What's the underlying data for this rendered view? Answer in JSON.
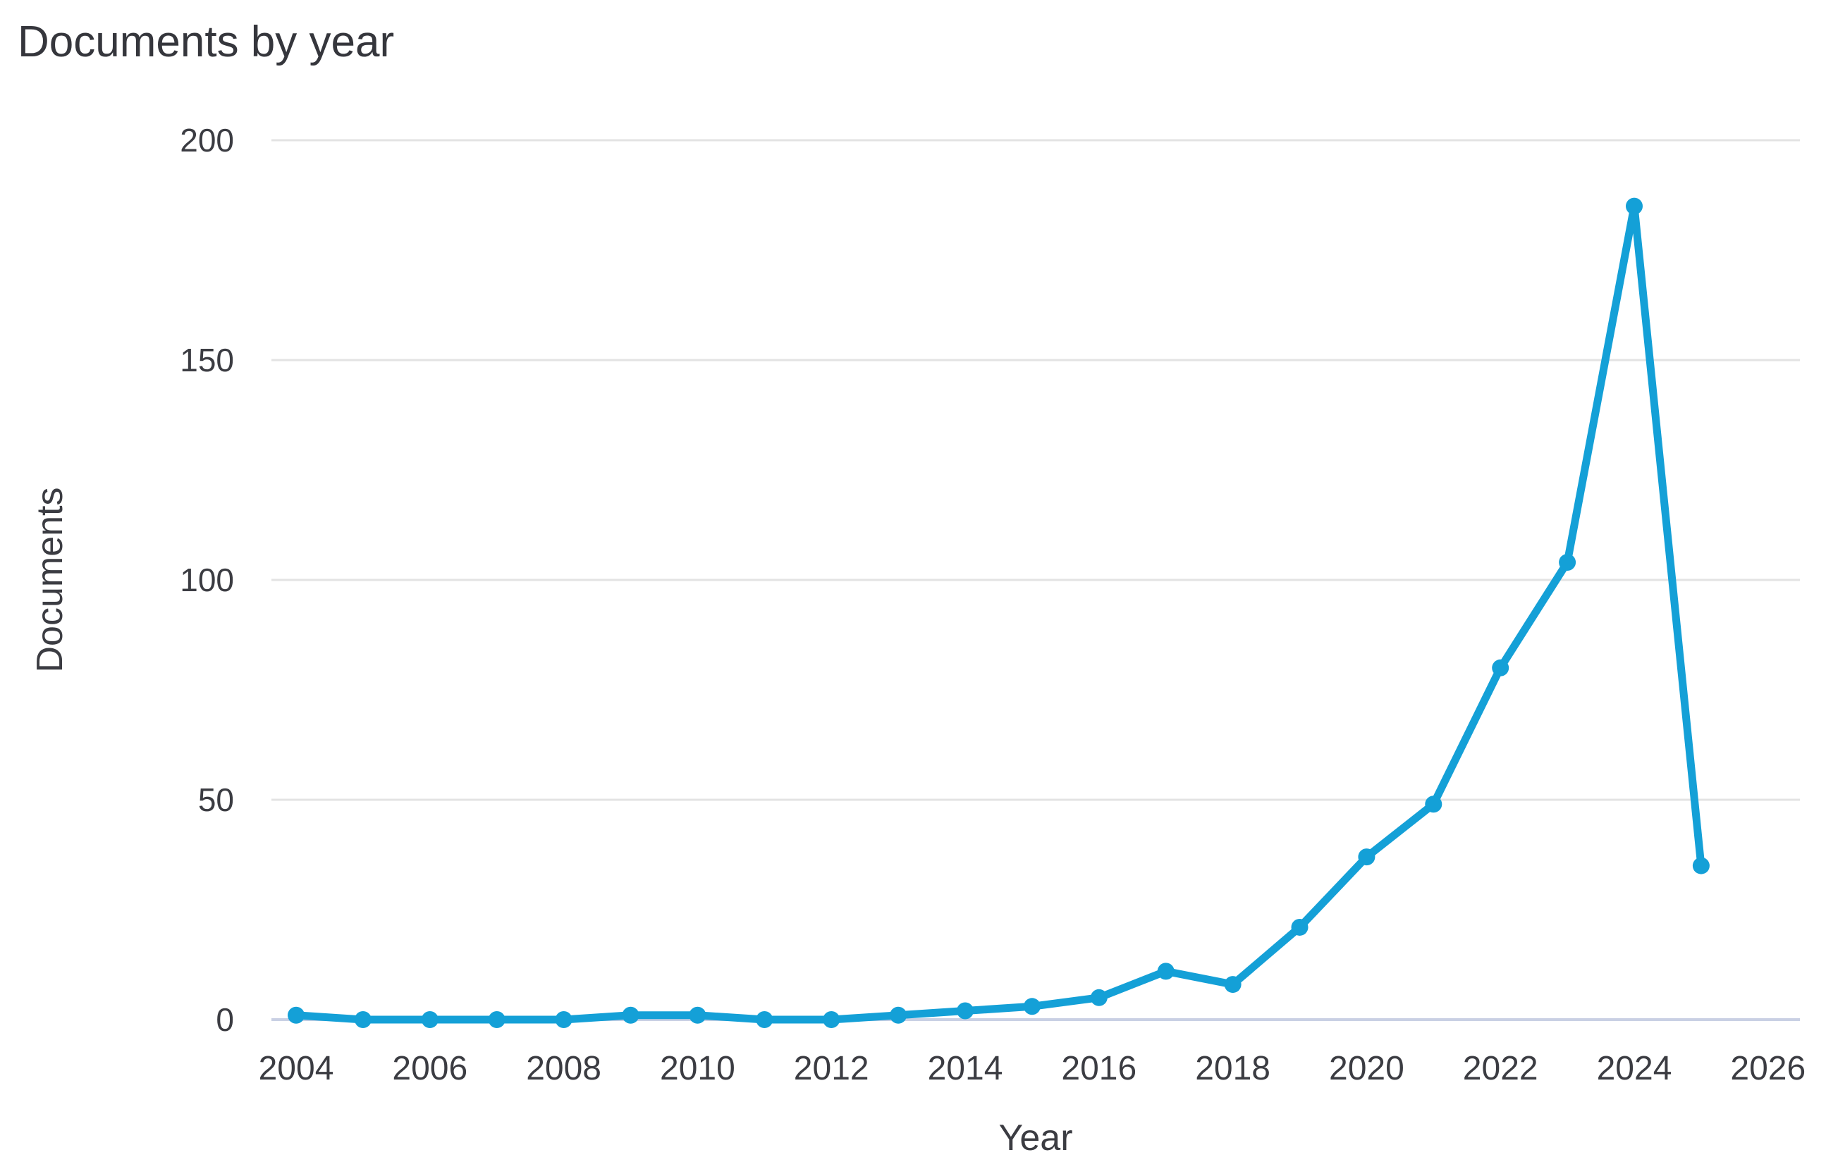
{
  "chart_data": {
    "type": "line",
    "title": "Documents by year",
    "xlabel": "Year",
    "ylabel": "Documents",
    "x": [
      2004,
      2005,
      2006,
      2007,
      2008,
      2009,
      2010,
      2011,
      2012,
      2013,
      2014,
      2015,
      2016,
      2017,
      2018,
      2019,
      2020,
      2021,
      2022,
      2023,
      2024,
      2025
    ],
    "values": [
      1,
      0,
      0,
      0,
      0,
      1,
      1,
      0,
      0,
      1,
      2,
      3,
      5,
      11,
      8,
      21,
      37,
      49,
      80,
      104,
      185,
      35
    ],
    "series_name": "Documents",
    "x_tick_labels": [
      "2004",
      "2006",
      "2008",
      "2010",
      "2012",
      "2014",
      "2016",
      "2018",
      "2020",
      "2022",
      "2024",
      "2026"
    ],
    "x_ticks": [
      2004,
      2006,
      2008,
      2010,
      2012,
      2014,
      2016,
      2018,
      2020,
      2022,
      2024,
      2026
    ],
    "y_ticks": [
      0,
      50,
      100,
      150,
      200
    ],
    "y_tick_labels": [
      "0",
      "50",
      "100",
      "150",
      "200"
    ],
    "ylim": [
      0,
      200
    ],
    "xlim": [
      2003.6,
      2026.5
    ],
    "grid": "horizontal-only",
    "legend": "none",
    "colors": {
      "line": "#14a0d7",
      "marker": "#14a0d7",
      "gridline": "#e3e3e3",
      "baseline": "#c9d0e4",
      "text": "#3b3c42",
      "title_text": "#35363c",
      "background": "#ffffff"
    }
  }
}
